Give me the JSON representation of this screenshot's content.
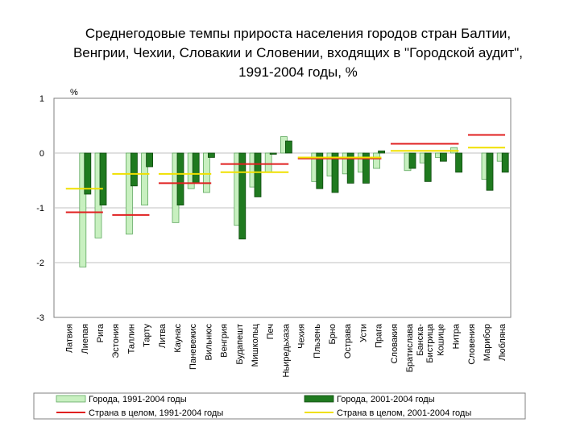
{
  "chart_data": {
    "type": "bar",
    "title_lines": [
      "Среднегодовые темпы прироста населения городов стран Балтии,",
      "Венгрии, Чехии, Словакии и Словении, входящих в \"Городской аудит\",",
      "1991-2004 годы, %"
    ],
    "ylabel": "%",
    "ylim": [
      -3,
      1
    ],
    "yticks": [
      1,
      0,
      -1,
      -2,
      -3
    ],
    "categories": [
      "Латвия",
      "Лиепая",
      "Рига",
      "Эстония",
      "Таллин",
      "Тарту",
      "Литва",
      "Каунас",
      "Паневежис",
      "Вильнюс",
      "Венгрия",
      "Будапешт",
      "Мишкольц",
      "Печ",
      "Ньиредьхаза",
      "Чехия",
      "Пльзень",
      "Брно",
      "Острава",
      "Усти",
      "Прага",
      "Словакия",
      "Братислава",
      "Банска-Бистрица",
      "Кошице",
      "Нитра",
      "Словения",
      "Марибор",
      "Любляна"
    ],
    "category_label_lines": [
      [
        "Латвия"
      ],
      [
        "Лиепая"
      ],
      [
        "Рига"
      ],
      [
        "Эстония"
      ],
      [
        "Таллин"
      ],
      [
        "Тарту"
      ],
      [
        "Литва"
      ],
      [
        "Каунас"
      ],
      [
        "Паневежис"
      ],
      [
        "Вильнюс"
      ],
      [
        "Венгрия"
      ],
      [
        "Будапешт"
      ],
      [
        "Мишкольц"
      ],
      [
        "Печ"
      ],
      [
        "Ньиредьхаза"
      ],
      [
        "Чехия"
      ],
      [
        "Пльзень"
      ],
      [
        "Брно"
      ],
      [
        "Острава"
      ],
      [
        "Усти"
      ],
      [
        "Прага"
      ],
      [
        "Словакия"
      ],
      [
        "Братислава"
      ],
      [
        "Банска-",
        "Бистрица"
      ],
      [
        "Кошице"
      ],
      [
        "Нитра"
      ],
      [
        "Словения"
      ],
      [
        "Марибор"
      ],
      [
        "Любляна"
      ]
    ],
    "series": [
      {
        "name": "Города, 1991-2004 годы",
        "color": "#c8f0c0",
        "stroke": "#5fa85f",
        "values": [
          null,
          -2.08,
          -1.55,
          null,
          -1.48,
          -0.95,
          null,
          -1.27,
          -0.65,
          -0.72,
          null,
          -1.32,
          -0.62,
          -0.35,
          0.3,
          null,
          -0.52,
          -0.42,
          -0.38,
          -0.35,
          -0.28,
          null,
          -0.32,
          -0.18,
          -0.08,
          0.1,
          null,
          -0.48,
          -0.15
        ]
      },
      {
        "name": "Города, 2001-2004 годы",
        "color": "#1f7a1f",
        "stroke": "#0d4a0d",
        "values": [
          null,
          -0.75,
          -0.95,
          null,
          -0.6,
          -0.25,
          null,
          -0.95,
          -0.55,
          -0.08,
          null,
          -1.57,
          -0.8,
          0.0,
          0.22,
          null,
          -0.65,
          -0.72,
          -0.55,
          -0.55,
          0.04,
          null,
          -0.28,
          -0.52,
          -0.15,
          -0.35,
          null,
          -0.68,
          -0.35
        ]
      }
    ],
    "country_lines": [
      {
        "name": "Страна в целом, 1991-2004 годы",
        "color": "#e02020",
        "segments": [
          {
            "from": 0,
            "to": 2,
            "value": -1.08
          },
          {
            "from": 3,
            "to": 5,
            "value": -1.13
          },
          {
            "from": 6,
            "to": 9,
            "value": -0.55
          },
          {
            "from": 10,
            "to": 14,
            "value": -0.2
          },
          {
            "from": 15,
            "to": 20,
            "value": -0.1
          },
          {
            "from": 21,
            "to": 25,
            "value": 0.17
          },
          {
            "from": 26,
            "to": 28,
            "value": 0.33
          }
        ]
      },
      {
        "name": "Страна в целом, 2001-2004 годы",
        "color": "#f0e000",
        "segments": [
          {
            "from": 0,
            "to": 2,
            "value": -0.65
          },
          {
            "from": 3,
            "to": 5,
            "value": -0.38
          },
          {
            "from": 6,
            "to": 9,
            "value": -0.38
          },
          {
            "from": 10,
            "to": 14,
            "value": -0.35
          },
          {
            "from": 15,
            "to": 20,
            "value": -0.08
          },
          {
            "from": 21,
            "to": 25,
            "value": 0.04
          },
          {
            "from": 26,
            "to": 28,
            "value": 0.1
          }
        ]
      }
    ],
    "legend": [
      {
        "label": "Города, 1991-2004 годы",
        "kind": "box",
        "color": "#c8f0c0",
        "stroke": "#5fa85f"
      },
      {
        "label": "Города, 2001-2004 годы",
        "kind": "box",
        "color": "#1f7a1f",
        "stroke": "#0d4a0d"
      },
      {
        "label": "Страна в целом, 1991-2004 годы",
        "kind": "line",
        "color": "#e02020"
      },
      {
        "label": "Страна в целом, 2001-2004 годы",
        "kind": "line",
        "color": "#f0e000"
      }
    ]
  }
}
